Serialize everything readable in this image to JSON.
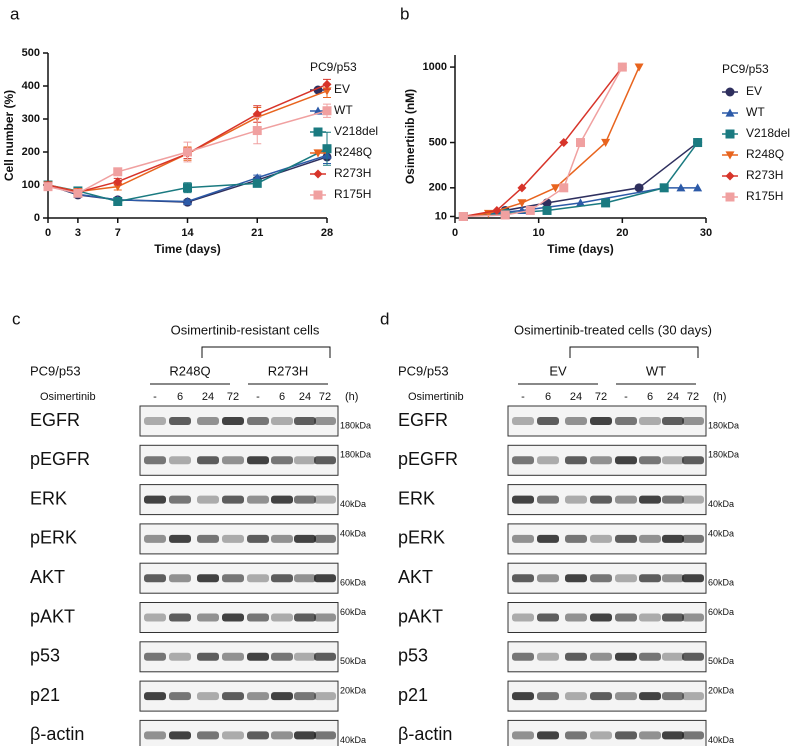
{
  "chart_data": [
    {
      "panel": "a",
      "type": "line",
      "x_label": "Time (days)",
      "y_label": "Cell number (%)",
      "legend_title": "PC9/p53",
      "x": [
        0,
        3,
        7,
        14,
        21,
        28
      ],
      "xlim": [
        0,
        28
      ],
      "xticks": [
        0,
        3,
        7,
        14,
        21,
        28
      ],
      "ylim": [
        0,
        500
      ],
      "yticks": [
        0,
        100,
        200,
        300,
        400,
        500
      ],
      "series": [
        {
          "name": "EV",
          "color": "#2e2f5e",
          "marker": "circle",
          "values": [
            100,
            70,
            55,
            48,
            115,
            185
          ],
          "errors": [
            8,
            5,
            5,
            5,
            8,
            20
          ]
        },
        {
          "name": "WT",
          "color": "#2c5aa8",
          "marker": "triangle-up",
          "values": [
            100,
            72,
            55,
            50,
            122,
            190
          ],
          "errors": [
            8,
            5,
            5,
            5,
            8,
            25
          ]
        },
        {
          "name": "V218del",
          "color": "#1a7a80",
          "marker": "square",
          "values": [
            100,
            82,
            50,
            92,
            105,
            210
          ],
          "errors": [
            8,
            5,
            8,
            15,
            10,
            50
          ]
        },
        {
          "name": "R248Q",
          "color": "#e8641e",
          "marker": "triangle-down",
          "values": [
            100,
            80,
            95,
            195,
            305,
            385
          ],
          "errors": [
            8,
            5,
            10,
            20,
            30,
            20
          ]
        },
        {
          "name": "R273H",
          "color": "#d7342a",
          "marker": "diamond",
          "values": [
            100,
            78,
            110,
            195,
            315,
            405
          ],
          "errors": [
            8,
            5,
            10,
            15,
            25,
            15
          ]
        },
        {
          "name": "R175H",
          "color": "#f0a0a0",
          "marker": "square",
          "values": [
            95,
            75,
            140,
            200,
            265,
            325
          ],
          "errors": [
            8,
            5,
            8,
            30,
            40,
            20
          ]
        }
      ]
    },
    {
      "panel": "b",
      "type": "line",
      "x_label": "Time (days)",
      "y_label": "Osimertinib (nM)",
      "legend_title": "PC9/p53",
      "xlim": [
        0,
        30
      ],
      "xticks": [
        0,
        10,
        20,
        30
      ],
      "ylim": [
        0,
        1080
      ],
      "yticks": [
        10,
        200,
        500,
        1000
      ],
      "series": [
        {
          "name": "EV",
          "color": "#2e2f5e",
          "marker": "circle",
          "x": [
            1,
            6,
            11,
            22,
            29
          ],
          "values": [
            10,
            50,
            100,
            200,
            500
          ]
        },
        {
          "name": "WT",
          "color": "#2c5aa8",
          "marker": "triangle-up",
          "x": [
            1,
            8,
            15,
            25,
            27,
            29
          ],
          "values": [
            10,
            50,
            100,
            200,
            200,
            200
          ]
        },
        {
          "name": "V218del",
          "color": "#1a7a80",
          "marker": "square",
          "x": [
            1,
            6,
            11,
            18,
            25,
            29
          ],
          "values": [
            10,
            30,
            50,
            100,
            200,
            500
          ]
        },
        {
          "name": "R248Q",
          "color": "#e8641e",
          "marker": "triangle-down",
          "x": [
            1,
            4,
            8,
            12,
            18,
            22
          ],
          "values": [
            10,
            30,
            100,
            200,
            500,
            1000
          ]
        },
        {
          "name": "R273H",
          "color": "#d7342a",
          "marker": "diamond",
          "x": [
            1,
            5,
            8,
            13,
            20
          ],
          "values": [
            10,
            50,
            200,
            500,
            1000
          ]
        },
        {
          "name": "R175H",
          "color": "#f0a0a0",
          "marker": "square",
          "x": [
            1,
            6,
            9,
            13,
            15,
            20
          ],
          "values": [
            10,
            20,
            50,
            200,
            500,
            1000
          ]
        }
      ]
    }
  ],
  "blots": [
    {
      "panel": "c",
      "title": "Osimertinib-resistant cells",
      "cell_line": "PC9/p53",
      "groups": [
        "R248Q",
        "R273H"
      ],
      "treatment": "Osimertinib",
      "lanes": [
        "-",
        "6",
        "24",
        "72",
        "-",
        "6",
        "24",
        "72"
      ],
      "unit": "(h)",
      "rows": [
        {
          "protein": "EGFR",
          "marker": "180kDa"
        },
        {
          "protein": "pEGFR",
          "marker": "180kDa"
        },
        {
          "protein": "ERK",
          "marker": "40kDa"
        },
        {
          "protein": "pERK",
          "marker": "40kDa"
        },
        {
          "protein": "AKT",
          "marker": "60kDa"
        },
        {
          "protein": "pAKT",
          "marker": "60kDa"
        },
        {
          "protein": "p53",
          "marker": "50kDa"
        },
        {
          "protein": "p21",
          "marker": "20kDa"
        },
        {
          "protein": "β-actin",
          "marker": "40kDa"
        }
      ]
    },
    {
      "panel": "d",
      "title": "Osimertinib-treated cells (30 days)",
      "cell_line": "PC9/p53",
      "groups": [
        "EV",
        "WT"
      ],
      "treatment": "Osimertinib",
      "lanes": [
        "-",
        "6",
        "24",
        "72",
        "-",
        "6",
        "24",
        "72"
      ],
      "unit": "(h)",
      "rows": [
        {
          "protein": "EGFR",
          "marker": "180kDa"
        },
        {
          "protein": "pEGFR",
          "marker": "180kDa"
        },
        {
          "protein": "ERK",
          "marker": "40kDa"
        },
        {
          "protein": "pERK",
          "marker": "40kDa"
        },
        {
          "protein": "AKT",
          "marker": "60kDa"
        },
        {
          "protein": "pAKT",
          "marker": "60kDa"
        },
        {
          "protein": "p53",
          "marker": "50kDa"
        },
        {
          "protein": "p21",
          "marker": "20kDa"
        },
        {
          "protein": "β-actin",
          "marker": "40kDa"
        }
      ]
    }
  ]
}
